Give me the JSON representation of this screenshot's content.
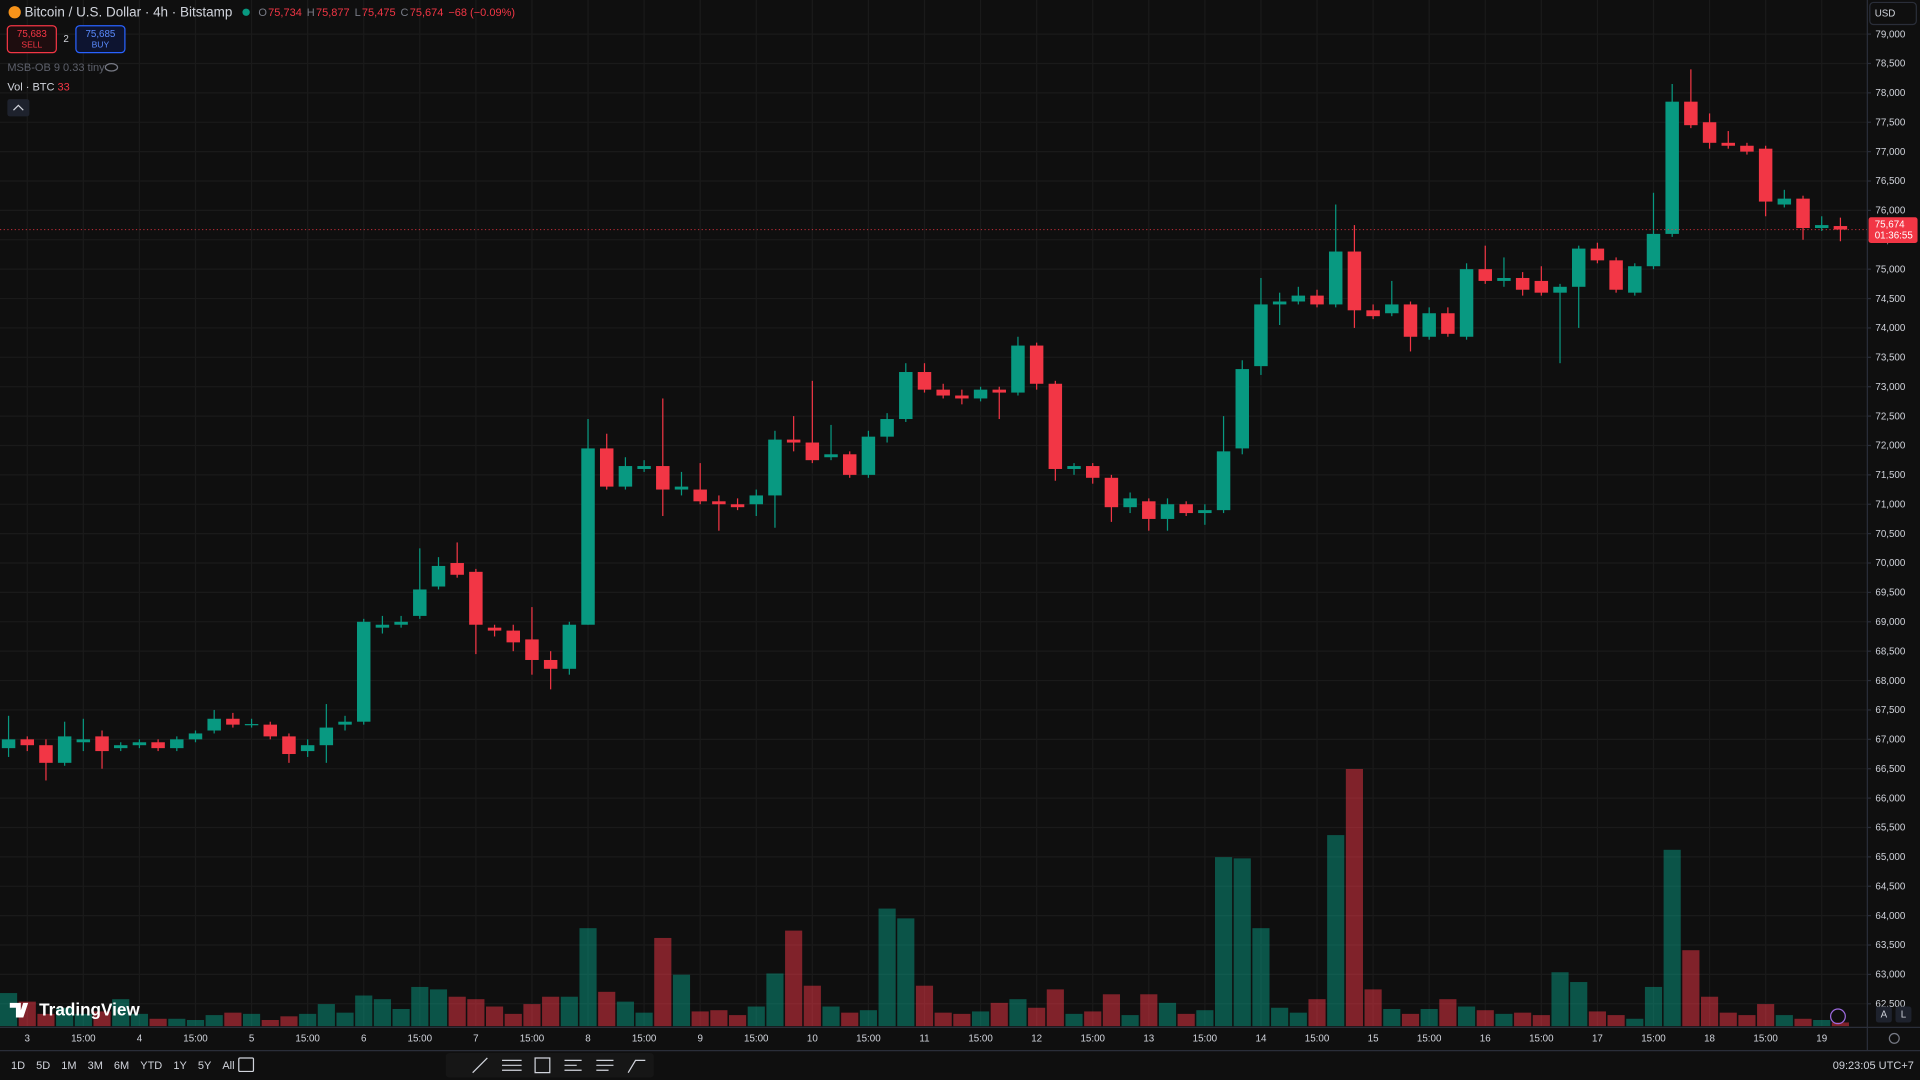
{
  "header": {
    "symbol": "Bitcoin / U.S. Dollar · 4h · Bitstamp",
    "ohlc": [
      {
        "key": "O",
        "value": "75,734"
      },
      {
        "key": "H",
        "value": "75,877"
      },
      {
        "key": "L",
        "value": "75,475"
      },
      {
        "key": "C",
        "value": "75,674"
      }
    ],
    "change": "−68 (−0.09%)"
  },
  "trade": {
    "sell_price": "75,683",
    "sell": "SELL",
    "spread": "2",
    "buy_price": "75,685",
    "buy": "BUY"
  },
  "indicators": {
    "msb": "MSB-OB 9 0.33 tiny",
    "vol": "Vol · BTC"
  },
  "currency": "USD",
  "logo": "TradingView",
  "toolbar": {
    "ranges": [
      "1D",
      "5D",
      "1M",
      "3M",
      "6M",
      "YTD",
      "1Y",
      "5Y",
      "All"
    ],
    "clock": "09:23:05 UTC+7",
    "scale_buttons": [
      "A",
      "L"
    ]
  },
  "chart_data": {
    "type": "candlestick",
    "up_color": "#089981",
    "down_color": "#f23645",
    "grid": true,
    "last_price_label": "75,674",
    "countdown": "01:36:55",
    "ylim": [
      62120,
      79580
    ],
    "yticks": [
      {
        "value": 62500,
        "label": "62,500"
      },
      {
        "value": 63000,
        "label": "63,000"
      },
      {
        "value": 63500,
        "label": "63,500"
      },
      {
        "value": 64000,
        "label": "64,000"
      },
      {
        "value": 64500,
        "label": "64,500"
      },
      {
        "value": 65000,
        "label": "65,000"
      },
      {
        "value": 65500,
        "label": "65,500"
      },
      {
        "value": 66000,
        "label": "66,000"
      },
      {
        "value": 66500,
        "label": "66,500"
      },
      {
        "value": 67000,
        "label": "67,000"
      },
      {
        "value": 67500,
        "label": "67,500"
      },
      {
        "value": 68000,
        "label": "68,000"
      },
      {
        "value": 68500,
        "label": "68,500"
      },
      {
        "value": 69000,
        "label": "69,000"
      },
      {
        "value": 69500,
        "label": "69,500"
      },
      {
        "value": 70000,
        "label": "70,000"
      },
      {
        "value": 70500,
        "label": "70,500"
      },
      {
        "value": 71000,
        "label": "71,000"
      },
      {
        "value": 71500,
        "label": "71,500"
      },
      {
        "value": 72000,
        "label": "72,000"
      },
      {
        "value": 72500,
        "label": "72,500"
      },
      {
        "value": 73000,
        "label": "73,000"
      },
      {
        "value": 73500,
        "label": "73,500"
      },
      {
        "value": 74000,
        "label": "74,000"
      },
      {
        "value": 74500,
        "label": "74,500"
      },
      {
        "value": 75000,
        "label": "75,000"
      },
      {
        "value": 75500,
        "label": "75,500"
      },
      {
        "value": 76000,
        "label": "76,000"
      },
      {
        "value": 76500,
        "label": "76,500"
      },
      {
        "value": 77000,
        "label": "77,000"
      },
      {
        "value": 77500,
        "label": "77,500"
      },
      {
        "value": 78000,
        "label": "78,000"
      },
      {
        "value": 78500,
        "label": "78,500"
      },
      {
        "value": 79000,
        "label": "79,000"
      }
    ],
    "categories": [
      null,
      "3",
      null,
      null,
      "15:00",
      null,
      null,
      "4",
      null,
      null,
      "15:00",
      null,
      null,
      "5",
      null,
      null,
      "15:00",
      null,
      null,
      "6",
      null,
      null,
      "15:00",
      null,
      null,
      "7",
      null,
      null,
      "15:00",
      null,
      null,
      "8",
      null,
      null,
      "15:00",
      null,
      null,
      "9",
      null,
      null,
      "15:00",
      null,
      null,
      "10",
      null,
      null,
      "15:00",
      null,
      null,
      "11",
      null,
      null,
      "15:00",
      null,
      null,
      "12",
      null,
      null,
      "15:00",
      null,
      null,
      "13",
      null,
      null,
      "15:00",
      null,
      null,
      "14",
      null,
      null,
      "15:00",
      null,
      null,
      "15",
      null,
      null,
      "15:00",
      null,
      null,
      "16",
      null,
      null,
      "15:00",
      null,
      null,
      "17",
      null,
      null,
      "15:00",
      null,
      null,
      "18",
      null,
      null,
      "15:00",
      null,
      null,
      "19",
      null
    ],
    "open": [
      66850,
      67000,
      66900,
      66600,
      66950,
      67050,
      66850,
      66900,
      66950,
      66850,
      67000,
      67150,
      67350,
      67250,
      67250,
      67050,
      66800,
      66900,
      67250,
      67300,
      68900,
      68950,
      69100,
      69600,
      70000,
      69850,
      68900,
      68850,
      68700,
      68350,
      68200,
      68950,
      71950,
      71300,
      71600,
      71650,
      71250,
      71250,
      71050,
      71000,
      71000,
      71150,
      72100,
      72050,
      71800,
      71850,
      71500,
      72150,
      72450,
      73250,
      72950,
      72850,
      72800,
      72950,
      72900,
      73700,
      73050,
      71600,
      71650,
      71450,
      70950,
      71050,
      70750,
      71000,
      70850,
      70900,
      71950,
      73350,
      74400,
      74450,
      74550,
      74400,
      75300,
      74300,
      74250,
      74400,
      73850,
      74250,
      73850,
      75000,
      74800,
      74850,
      74800,
      74600,
      74700,
      75350,
      75150,
      74600,
      75050,
      75600,
      77850,
      77500,
      77150,
      77100,
      77050,
      76100,
      76200,
      75700,
      75734
    ],
    "high": [
      67400,
      67050,
      67000,
      67300,
      67350,
      67150,
      66950,
      67000,
      67000,
      67050,
      67150,
      67500,
      67450,
      67350,
      67300,
      67100,
      67000,
      67600,
      67400,
      69050,
      69100,
      69100,
      70250,
      70100,
      70350,
      69900,
      68950,
      68950,
      69250,
      68500,
      69000,
      72450,
      72200,
      71800,
      71750,
      72800,
      71550,
      71700,
      71150,
      71100,
      71250,
      72250,
      72500,
      73100,
      72350,
      71900,
      72250,
      72550,
      73400,
      73400,
      73050,
      72950,
      73000,
      73000,
      73850,
      73750,
      73100,
      71700,
      71700,
      71500,
      71200,
      71100,
      71100,
      71050,
      71000,
      72500,
      73450,
      74850,
      74600,
      74700,
      74650,
      76100,
      75750,
      74400,
      74800,
      74450,
      74350,
      74350,
      75100,
      75400,
      75200,
      74950,
      75050,
      74750,
      75400,
      75450,
      75200,
      75100,
      76300,
      78150,
      78400,
      77650,
      77350,
      77150,
      77100,
      76350,
      76250,
      75900,
      75877
    ],
    "low": [
      66700,
      66800,
      66300,
      66550,
      66800,
      66500,
      66800,
      66850,
      66800,
      66800,
      66950,
      67100,
      67200,
      67200,
      67000,
      66600,
      66700,
      66600,
      67150,
      67250,
      68800,
      68900,
      69050,
      69550,
      69750,
      68450,
      68750,
      68500,
      68100,
      67850,
      68100,
      68950,
      71250,
      71250,
      71550,
      70800,
      71150,
      71000,
      70550,
      70900,
      70800,
      70600,
      71900,
      71700,
      71750,
      71450,
      71450,
      72050,
      72400,
      72900,
      72800,
      72700,
      72750,
      72450,
      72850,
      72950,
      71400,
      71500,
      71350,
      70700,
      70850,
      70550,
      70550,
      70800,
      70650,
      70850,
      71850,
      73200,
      74050,
      74400,
      74350,
      74350,
      74000,
      74150,
      74200,
      73600,
      73800,
      73850,
      73800,
      74750,
      74700,
      74550,
      74550,
      73400,
      74000,
      75100,
      74600,
      74550,
      75000,
      75550,
      77400,
      77050,
      77050,
      76950,
      75900,
      76050,
      75500,
      75650,
      75475
    ],
    "close": [
      67000,
      66900,
      66600,
      67050,
      67000,
      66800,
      66900,
      66950,
      66850,
      67000,
      67100,
      67350,
      67250,
      67260,
      67050,
      66750,
      66900,
      67200,
      67300,
      69000,
      68950,
      69000,
      69550,
      69950,
      69800,
      68950,
      68850,
      68650,
      68350,
      68200,
      68950,
      71950,
      71300,
      71650,
      71650,
      71250,
      71300,
      71050,
      71000,
      70950,
      71150,
      72100,
      72050,
      71750,
      71850,
      71500,
      72150,
      72450,
      73250,
      72950,
      72850,
      72800,
      72950,
      72900,
      73700,
      73050,
      71600,
      71650,
      71450,
      70950,
      71100,
      70750,
      71000,
      70850,
      70900,
      71900,
      73300,
      74400,
      74450,
      74550,
      74400,
      75300,
      74300,
      74200,
      74400,
      73850,
      74250,
      73900,
      75000,
      74800,
      74850,
      74650,
      74600,
      74700,
      75350,
      75150,
      74650,
      75050,
      75600,
      77850,
      77450,
      77150,
      77100,
      77000,
      76150,
      76200,
      75700,
      75750,
      75674
    ],
    "volume": [
      297,
      220,
      110,
      165,
      110,
      132,
      242,
      110,
      66,
      66,
      55,
      99,
      121,
      110,
      55,
      88,
      110,
      198,
      121,
      275,
      242,
      154,
      352,
      330,
      264,
      242,
      176,
      110,
      198,
      264,
      264,
      880,
      308,
      220,
      121,
      792,
      462,
      132,
      143,
      99,
      176,
      473,
      858,
      363,
      176,
      121,
      143,
      1056,
      968,
      363,
      121,
      110,
      132,
      209,
      242,
      165,
      330,
      110,
      132,
      286,
      99,
      286,
      209,
      110,
      143,
      1518,
      1507,
      880,
      165,
      121,
      242,
      1716,
      2310,
      330,
      154,
      110,
      154,
      242,
      176,
      143,
      110,
      121,
      99,
      484,
      396,
      132,
      99,
      66,
      352,
      1584,
      682,
      264,
      121,
      99,
      198,
      99,
      66,
      55,
      33
    ]
  }
}
